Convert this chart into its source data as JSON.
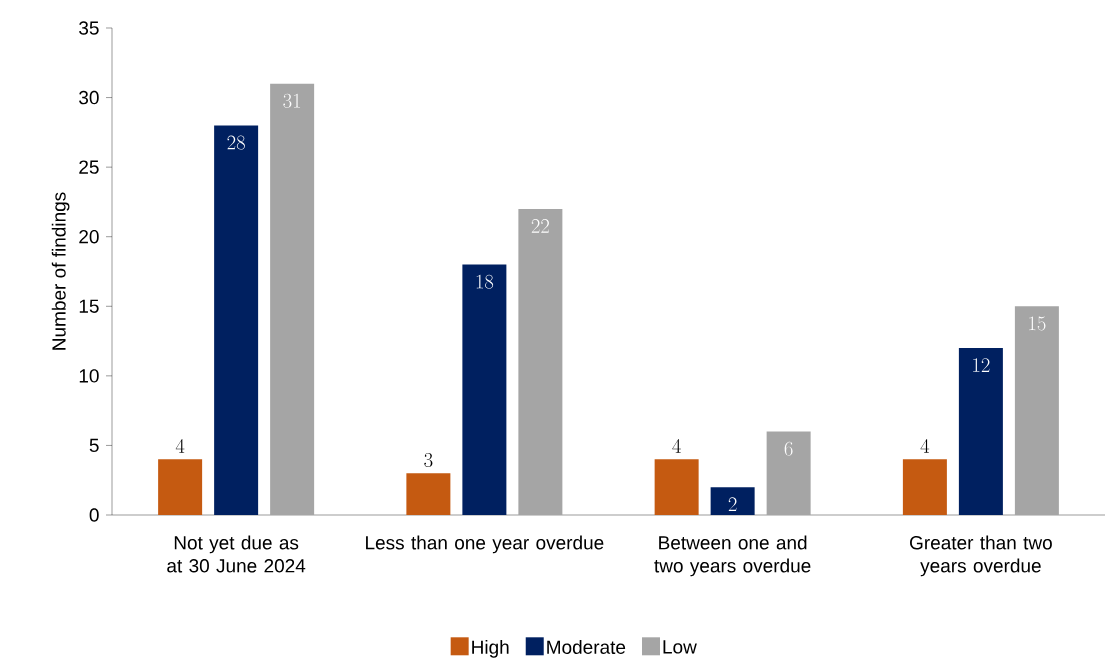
{
  "chart_data": {
    "type": "bar",
    "ylabel": "Number of findings",
    "categories": [
      "Not yet due as at 30 June 2024",
      "Less than one year overdue",
      "Between one and two years overdue",
      "Greater than two years overdue"
    ],
    "series": [
      {
        "name": "High",
        "color": "#c55a11",
        "values": [
          4,
          3,
          4,
          4
        ]
      },
      {
        "name": "Moderate",
        "color": "#002060",
        "values": [
          28,
          18,
          2,
          12
        ]
      },
      {
        "name": "Low",
        "color": "#a5a5a5",
        "values": [
          31,
          22,
          6,
          15
        ]
      }
    ],
    "ylim": [
      0,
      35
    ],
    "yticks": [
      0,
      5,
      10,
      15,
      20,
      25,
      30,
      35
    ],
    "data_labels": true,
    "legend": "bottom",
    "grid": false
  }
}
